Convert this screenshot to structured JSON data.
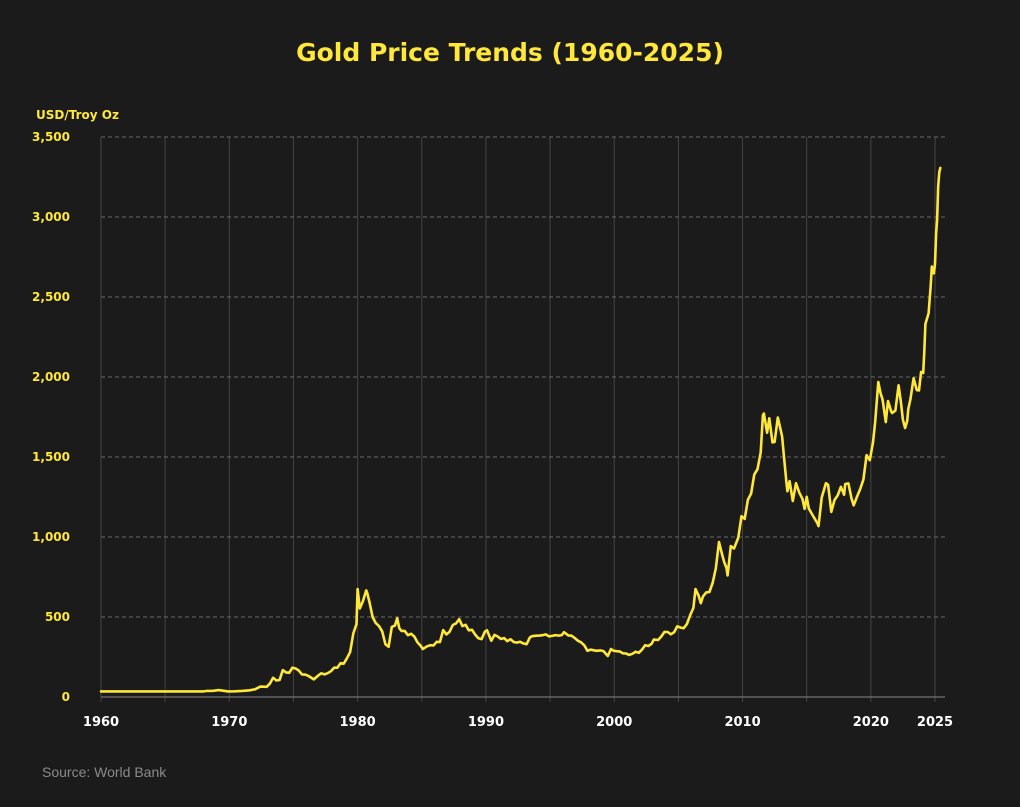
{
  "chart_data": {
    "type": "line",
    "title": "Gold Price Trends (1960-2025)",
    "ylabel": "USD/Troy Oz",
    "xlabel": "",
    "source": "Source: World Bank",
    "xlim": [
      1960,
      2025.9
    ],
    "ylim": [
      0,
      3500
    ],
    "x_ticks": [
      "1960",
      "1970",
      "1980",
      "1990",
      "2000",
      "2010",
      "2020",
      "2025"
    ],
    "x_gridlines_years": [
      1960,
      1965,
      1970,
      1975,
      1980,
      1985,
      1990,
      1995,
      2000,
      2005,
      2010,
      2015,
      2020,
      2025
    ],
    "y_ticks": [
      0,
      500,
      1000,
      1500,
      2000,
      2500,
      3000,
      3500
    ],
    "y_tick_labels": [
      "0",
      "500",
      "1,000",
      "1,500",
      "2,000",
      "2,500",
      "3,000",
      "3,500"
    ],
    "grid": {
      "horizontal": "dashed",
      "vertical": "solid"
    },
    "colors": {
      "line": "#FFE83A",
      "background": "#1b1b1b",
      "grid": "#555555"
    },
    "series": [
      {
        "points": [
          [
            "1960-01",
            35
          ],
          [
            "1968-01",
            35
          ],
          [
            "1968-04",
            38
          ],
          [
            "1968-10",
            39
          ],
          [
            "1969-03",
            43
          ],
          [
            "1969-12",
            35
          ],
          [
            "1970-06",
            35.5
          ],
          [
            "1971-01",
            38
          ],
          [
            "1971-08",
            42
          ],
          [
            "1972-01",
            48
          ],
          [
            "1972-06",
            65
          ],
          [
            "1972-12",
            64
          ],
          [
            "1973-03",
            84
          ],
          [
            "1973-06",
            120
          ],
          [
            "1973-09",
            103
          ],
          [
            "1973-12",
            106
          ],
          [
            "1974-03",
            168
          ],
          [
            "1974-06",
            154
          ],
          [
            "1974-09",
            151
          ],
          [
            "1974-12",
            183
          ],
          [
            "1975-03",
            178
          ],
          [
            "1975-06",
            165
          ],
          [
            "1975-09",
            141
          ],
          [
            "1975-12",
            140
          ],
          [
            "1976-03",
            132
          ],
          [
            "1976-08",
            110
          ],
          [
            "1976-12",
            134
          ],
          [
            "1977-03",
            148
          ],
          [
            "1977-06",
            141
          ],
          [
            "1977-09",
            149
          ],
          [
            "1977-12",
            161
          ],
          [
            "1978-03",
            183
          ],
          [
            "1978-06",
            183
          ],
          [
            "1978-09",
            211
          ],
          [
            "1978-12",
            208
          ],
          [
            "1979-03",
            242
          ],
          [
            "1979-06",
            280
          ],
          [
            "1979-09",
            397
          ],
          [
            "1979-12",
            456
          ],
          [
            "1980-01",
            675
          ],
          [
            "1980-03",
            553
          ],
          [
            "1980-06",
            600
          ],
          [
            "1980-09",
            666
          ],
          [
            "1980-10",
            650
          ],
          [
            "1980-12",
            595
          ],
          [
            "1981-03",
            500
          ],
          [
            "1981-06",
            462
          ],
          [
            "1981-09",
            443
          ],
          [
            "1981-12",
            410
          ],
          [
            "1982-03",
            330
          ],
          [
            "1982-06",
            314
          ],
          [
            "1982-09",
            438
          ],
          [
            "1982-12",
            447
          ],
          [
            "1983-02",
            492
          ],
          [
            "1983-04",
            430
          ],
          [
            "1983-06",
            413
          ],
          [
            "1983-09",
            413
          ],
          [
            "1983-12",
            386
          ],
          [
            "1984-03",
            395
          ],
          [
            "1984-06",
            378
          ],
          [
            "1984-09",
            341
          ],
          [
            "1984-12",
            320
          ],
          [
            "1985-02",
            300
          ],
          [
            "1985-06",
            317
          ],
          [
            "1985-09",
            324
          ],
          [
            "1985-12",
            322
          ],
          [
            "1986-03",
            345
          ],
          [
            "1986-06",
            343
          ],
          [
            "1986-09",
            418
          ],
          [
            "1986-12",
            391
          ],
          [
            "1987-03",
            408
          ],
          [
            "1987-06",
            450
          ],
          [
            "1987-09",
            460
          ],
          [
            "1987-12",
            486
          ],
          [
            "1988-03",
            443
          ],
          [
            "1988-06",
            451
          ],
          [
            "1988-09",
            417
          ],
          [
            "1988-12",
            420
          ],
          [
            "1989-03",
            390
          ],
          [
            "1989-06",
            367
          ],
          [
            "1989-09",
            362
          ],
          [
            "1989-12",
            409
          ],
          [
            "1990-02",
            417
          ],
          [
            "1990-06",
            352
          ],
          [
            "1990-09",
            388
          ],
          [
            "1990-12",
            378
          ],
          [
            "1991-03",
            363
          ],
          [
            "1991-06",
            368
          ],
          [
            "1991-09",
            349
          ],
          [
            "1991-12",
            361
          ],
          [
            "1992-03",
            344
          ],
          [
            "1992-06",
            340
          ],
          [
            "1992-09",
            345
          ],
          [
            "1992-12",
            335
          ],
          [
            "1993-03",
            330
          ],
          [
            "1993-06",
            371
          ],
          [
            "1993-08",
            380
          ],
          [
            "1993-12",
            383
          ],
          [
            "1994-03",
            384
          ],
          [
            "1994-06",
            386
          ],
          [
            "1994-09",
            391
          ],
          [
            "1994-12",
            379
          ],
          [
            "1995-03",
            382
          ],
          [
            "1995-06",
            387
          ],
          [
            "1995-09",
            384
          ],
          [
            "1995-12",
            387
          ],
          [
            "1996-02",
            405
          ],
          [
            "1996-06",
            385
          ],
          [
            "1996-09",
            383
          ],
          [
            "1996-12",
            369
          ],
          [
            "1997-03",
            352
          ],
          [
            "1997-06",
            341
          ],
          [
            "1997-09",
            323
          ],
          [
            "1997-12",
            289
          ],
          [
            "1998-03",
            296
          ],
          [
            "1998-06",
            292
          ],
          [
            "1998-09",
            289
          ],
          [
            "1998-12",
            291
          ],
          [
            "1999-03",
            287
          ],
          [
            "1999-07",
            256
          ],
          [
            "1999-10",
            300
          ],
          [
            "1999-12",
            290
          ],
          [
            "2000-03",
            286
          ],
          [
            "2000-06",
            285
          ],
          [
            "2000-09",
            273
          ],
          [
            "2000-12",
            272
          ],
          [
            "2001-03",
            263
          ],
          [
            "2001-06",
            270
          ],
          [
            "2001-09",
            283
          ],
          [
            "2001-12",
            276
          ],
          [
            "2002-03",
            296
          ],
          [
            "2002-06",
            324
          ],
          [
            "2002-09",
            319
          ],
          [
            "2002-12",
            333
          ],
          [
            "2003-02",
            359
          ],
          [
            "2003-06",
            356
          ],
          [
            "2003-09",
            378
          ],
          [
            "2003-12",
            407
          ],
          [
            "2004-03",
            406
          ],
          [
            "2004-06",
            392
          ],
          [
            "2004-09",
            405
          ],
          [
            "2004-12",
            442
          ],
          [
            "2005-03",
            434
          ],
          [
            "2005-06",
            430
          ],
          [
            "2005-09",
            456
          ],
          [
            "2005-12",
            510
          ],
          [
            "2006-03",
            557
          ],
          [
            "2006-05",
            675
          ],
          [
            "2006-08",
            632
          ],
          [
            "2006-10",
            586
          ],
          [
            "2006-12",
            629
          ],
          [
            "2007-03",
            654
          ],
          [
            "2007-06",
            656
          ],
          [
            "2007-09",
            712
          ],
          [
            "2007-12",
            803
          ],
          [
            "2008-03",
            968
          ],
          [
            "2008-06",
            889
          ],
          [
            "2008-08",
            839
          ],
          [
            "2008-10",
            807
          ],
          [
            "2008-11",
            760
          ],
          [
            "2009-02",
            943
          ],
          [
            "2009-05",
            928
          ],
          [
            "2009-09",
            996
          ],
          [
            "2009-12",
            1130
          ],
          [
            "2010-03",
            1113
          ],
          [
            "2010-06",
            1233
          ],
          [
            "2010-09",
            1271
          ],
          [
            "2010-12",
            1391
          ],
          [
            "2011-03",
            1424
          ],
          [
            "2011-06",
            1529
          ],
          [
            "2011-08",
            1760
          ],
          [
            "2011-09",
            1772
          ],
          [
            "2011-12",
            1652
          ],
          [
            "2012-02",
            1742
          ],
          [
            "2012-05",
            1591
          ],
          [
            "2012-07",
            1594
          ],
          [
            "2012-10",
            1747
          ],
          [
            "2012-12",
            1688
          ],
          [
            "2013-02",
            1628
          ],
          [
            "2013-04",
            1487
          ],
          [
            "2013-06",
            1343
          ],
          [
            "2013-07",
            1286
          ],
          [
            "2013-09",
            1349
          ],
          [
            "2013-12",
            1225
          ],
          [
            "2014-03",
            1336
          ],
          [
            "2014-06",
            1279
          ],
          [
            "2014-09",
            1239
          ],
          [
            "2014-11",
            1176
          ],
          [
            "2015-01",
            1251
          ],
          [
            "2015-03",
            1178
          ],
          [
            "2015-07",
            1131
          ],
          [
            "2015-11",
            1086
          ],
          [
            "2015-12",
            1068
          ],
          [
            "2016-03",
            1246
          ],
          [
            "2016-07",
            1336
          ],
          [
            "2016-09",
            1326
          ],
          [
            "2016-12",
            1157
          ],
          [
            "2017-03",
            1231
          ],
          [
            "2017-06",
            1260
          ],
          [
            "2017-09",
            1314
          ],
          [
            "2017-12",
            1264
          ],
          [
            "2018-01",
            1331
          ],
          [
            "2018-04",
            1335
          ],
          [
            "2018-07",
            1239
          ],
          [
            "2018-09",
            1198
          ],
          [
            "2018-12",
            1250
          ],
          [
            "2019-03",
            1300
          ],
          [
            "2019-06",
            1359
          ],
          [
            "2019-09",
            1511
          ],
          [
            "2019-12",
            1480
          ],
          [
            "2020-03",
            1591
          ],
          [
            "2020-05",
            1715
          ],
          [
            "2020-08",
            1968
          ],
          [
            "2020-10",
            1900
          ],
          [
            "2020-12",
            1858
          ],
          [
            "2021-03",
            1718
          ],
          [
            "2021-05",
            1850
          ],
          [
            "2021-08",
            1785
          ],
          [
            "2021-09",
            1775
          ],
          [
            "2021-12",
            1790
          ],
          [
            "2022-03",
            1948
          ],
          [
            "2022-05",
            1848
          ],
          [
            "2022-07",
            1733
          ],
          [
            "2022-09",
            1681
          ],
          [
            "2022-11",
            1725
          ],
          [
            "2022-12",
            1800
          ],
          [
            "2023-02",
            1860
          ],
          [
            "2023-05",
            1992
          ],
          [
            "2023-08",
            1918
          ],
          [
            "2023-10",
            1916
          ],
          [
            "2023-12",
            2032
          ],
          [
            "2024-02",
            2025
          ],
          [
            "2024-03",
            2160
          ],
          [
            "2024-04",
            2331
          ],
          [
            "2024-07",
            2398
          ],
          [
            "2024-09",
            2570
          ],
          [
            "2024-10",
            2690
          ],
          [
            "2024-11",
            2651
          ],
          [
            "2024-12",
            2648
          ],
          [
            "2025-01",
            2708
          ],
          [
            "2025-02",
            2895
          ],
          [
            "2025-03",
            2984
          ],
          [
            "2025-04",
            3193
          ],
          [
            "2025-05",
            3280
          ],
          [
            "2025-06",
            3307
          ]
        ]
      }
    ]
  }
}
